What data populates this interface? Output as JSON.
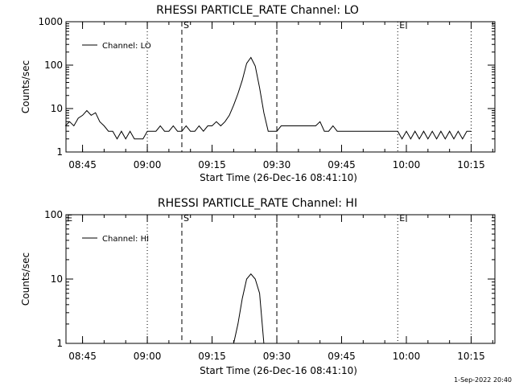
{
  "footer": {
    "timestamp": "1-Sep-2022 20:40"
  },
  "chart_data": [
    {
      "type": "line",
      "title": "RHESSI PARTICLE_RATE Channel: LO",
      "xlabel": "Start Time (26-Dec-16 08:41:10)",
      "ylabel": "Counts/sec",
      "y_scale": "log",
      "ylim": [
        1,
        1000
      ],
      "y_ticks": [
        "1",
        "10",
        "100",
        "1000"
      ],
      "x_ticks": [
        "08:45",
        "09:00",
        "09:15",
        "09:30",
        "09:45",
        "10:00",
        "10:15"
      ],
      "legend": {
        "position": "top-left",
        "label": "Channel: LO"
      },
      "markers": [
        {
          "time": "09:08",
          "style": "dashed",
          "label": "S"
        },
        {
          "time": "09:30",
          "style": "dashed",
          "label": ""
        },
        {
          "time": "09:00",
          "style": "dotted",
          "label": ""
        },
        {
          "time": "09:58",
          "style": "dotted",
          "label": "E"
        },
        {
          "time": "10:15",
          "style": "dotted",
          "label": ""
        }
      ],
      "series": [
        {
          "x": [
            "08:41",
            "08:42",
            "08:43",
            "08:44",
            "08:45",
            "08:46",
            "08:47",
            "08:48",
            "08:49",
            "08:50",
            "08:51",
            "08:52",
            "08:53",
            "08:54",
            "08:55",
            "08:56",
            "08:57",
            "08:58",
            "08:59",
            "09:00",
            "09:01",
            "09:02",
            "09:03",
            "09:04",
            "09:05",
            "09:06",
            "09:07",
            "09:08",
            "09:09",
            "09:10",
            "09:11",
            "09:12",
            "09:13",
            "09:14",
            "09:15",
            "09:16",
            "09:17",
            "09:18",
            "09:19",
            "09:20",
            "09:21",
            "09:22",
            "09:23",
            "09:24",
            "09:25",
            "09:26",
            "09:27",
            "09:28",
            "09:29",
            "09:30",
            "09:31",
            "09:32",
            "09:33",
            "09:34",
            "09:35",
            "09:36",
            "09:37",
            "09:38",
            "09:39",
            "09:40",
            "09:41",
            "09:42",
            "09:43",
            "09:44",
            "09:45",
            "09:46",
            "09:47",
            "09:48",
            "09:49",
            "09:50",
            "09:52",
            "09:54",
            "09:56",
            "09:58",
            "09:59",
            "10:00",
            "10:01",
            "10:02",
            "10:03",
            "10:04",
            "10:05",
            "10:06",
            "10:07",
            "10:08",
            "10:09",
            "10:10",
            "10:11",
            "10:12",
            "10:13",
            "10:14",
            "10:15"
          ],
          "y": [
            4,
            5,
            4,
            6,
            7,
            9,
            7,
            8,
            5,
            4,
            3,
            3,
            2,
            3,
            2,
            3,
            2,
            2,
            2,
            3,
            3,
            3,
            4,
            3,
            3,
            4,
            3,
            3,
            4,
            3,
            3,
            4,
            3,
            4,
            4,
            5,
            4,
            5,
            7,
            12,
            22,
            45,
            110,
            150,
            95,
            30,
            8,
            3,
            3,
            3,
            4,
            4,
            4,
            4,
            4,
            4,
            4,
            4,
            4,
            5,
            3,
            3,
            4,
            3,
            3,
            3,
            3,
            3,
            3,
            3,
            3,
            3,
            3,
            3,
            2,
            3,
            2,
            3,
            2,
            3,
            2,
            3,
            2,
            3,
            2,
            3,
            2,
            3,
            2,
            3,
            3
          ]
        }
      ]
    },
    {
      "type": "line",
      "title": "RHESSI PARTICLE_RATE Channel: HI",
      "xlabel": "Start Time (26-Dec-16 08:41:10)",
      "ylabel": "Counts/sec",
      "y_scale": "log",
      "ylim": [
        1,
        100
      ],
      "y_ticks": [
        "1",
        "10",
        "100"
      ],
      "x_ticks": [
        "08:45",
        "09:00",
        "09:15",
        "09:30",
        "09:45",
        "10:00",
        "10:15"
      ],
      "legend": {
        "position": "top-left",
        "label": "Channel: HI"
      },
      "markers": [
        {
          "time": "08:41",
          "style": "none",
          "label": "E"
        },
        {
          "time": "09:08",
          "style": "dashed",
          "label": "S"
        },
        {
          "time": "09:30",
          "style": "dashed",
          "label": ""
        },
        {
          "time": "09:00",
          "style": "dotted",
          "label": ""
        },
        {
          "time": "09:58",
          "style": "dotted",
          "label": "E"
        },
        {
          "time": "10:15",
          "style": "dotted",
          "label": ""
        }
      ],
      "series": [
        {
          "x": [
            "09:20",
            "09:21",
            "09:22",
            "09:23",
            "09:24",
            "09:25",
            "09:26",
            "09:27"
          ],
          "y": [
            1,
            2,
            5,
            10,
            12,
            10,
            6,
            1
          ]
        }
      ]
    }
  ]
}
